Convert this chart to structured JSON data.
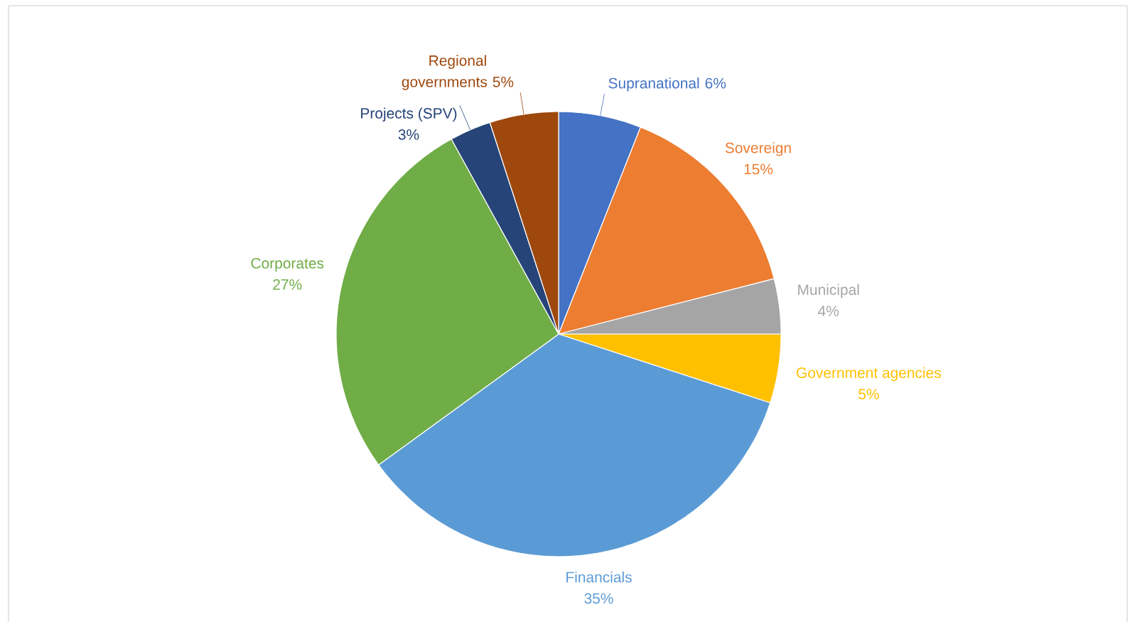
{
  "chart_data": {
    "type": "pie",
    "categories": [
      "Supranational",
      "Sovereign",
      "Municipal",
      "Government agencies",
      "Financials",
      "Corporates",
      "Projects (SPV)",
      "Regional governments"
    ],
    "values": [
      6,
      15,
      4,
      5,
      35,
      27,
      3,
      5
    ],
    "value_labels": [
      "6%",
      "15%",
      "4%",
      "5%",
      "35%",
      "27%",
      "3%",
      "5%"
    ],
    "colors": [
      "#4472c4",
      "#ed7d31",
      "#a5a5a5",
      "#ffc000",
      "#5b9bd5",
      "#70ad47",
      "#264478",
      "#9e480e"
    ]
  }
}
